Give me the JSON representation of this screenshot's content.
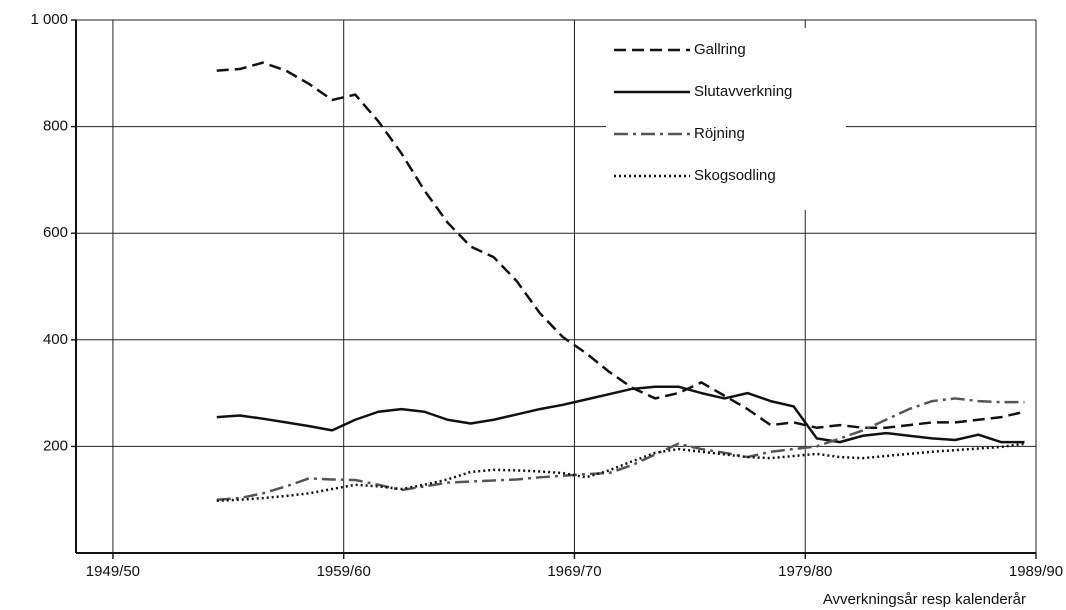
{
  "chart_data": {
    "type": "line",
    "xlabel": "Avverkningsår resp kalenderår",
    "x": [
      1954,
      1955,
      1956,
      1957,
      1958,
      1959,
      1960,
      1961,
      1962,
      1963,
      1964,
      1965,
      1966,
      1967,
      1968,
      1969,
      1970,
      1971,
      1972,
      1973,
      1974,
      1975,
      1976,
      1977,
      1978,
      1979,
      1980,
      1981,
      1982,
      1983,
      1984,
      1985,
      1986,
      1987,
      1988,
      1989
    ],
    "series": [
      {
        "name": "Gallring",
        "color": "#111111",
        "dash": "dashed",
        "values": [
          905,
          908,
          920,
          905,
          880,
          850,
          860,
          810,
          750,
          680,
          620,
          575,
          555,
          510,
          450,
          405,
          375,
          340,
          310,
          290,
          300,
          320,
          295,
          270,
          240,
          245,
          235,
          240,
          235,
          235,
          240,
          245,
          245,
          250,
          255,
          265
        ]
      },
      {
        "name": "Slutavverkning",
        "color": "#111111",
        "dash": "solid",
        "values": [
          255,
          258,
          252,
          245,
          238,
          230,
          250,
          265,
          270,
          265,
          250,
          243,
          250,
          260,
          270,
          278,
          288,
          298,
          308,
          312,
          312,
          300,
          290,
          300,
          285,
          275,
          215,
          208,
          220,
          225,
          220,
          215,
          212,
          222,
          208,
          208
        ]
      },
      {
        "name": "Röjning",
        "color": "#555555",
        "dash": "dashdot",
        "values": [
          100,
          103,
          112,
          125,
          140,
          138,
          137,
          128,
          118,
          125,
          132,
          134,
          136,
          138,
          142,
          145,
          148,
          150,
          165,
          185,
          205,
          195,
          188,
          180,
          190,
          195,
          200,
          215,
          230,
          250,
          270,
          285,
          290,
          285,
          283,
          283
        ]
      },
      {
        "name": "Skogsodling",
        "color": "#111111",
        "dash": "dotted",
        "values": [
          98,
          100,
          103,
          107,
          112,
          120,
          128,
          125,
          120,
          128,
          138,
          152,
          156,
          155,
          153,
          150,
          142,
          155,
          172,
          188,
          195,
          190,
          185,
          180,
          178,
          182,
          186,
          180,
          178,
          182,
          186,
          190,
          193,
          196,
          199,
          205
        ]
      }
    ],
    "xlim": [
      1947.9,
      1989.5
    ],
    "xticks": [
      {
        "value": 1949.5,
        "label": "1949/50"
      },
      {
        "value": 1959.5,
        "label": "1959/60"
      },
      {
        "value": 1969.5,
        "label": "1969/70"
      },
      {
        "value": 1979.5,
        "label": "1979/80"
      },
      {
        "value": 1989.5,
        "label": "1989/90"
      }
    ],
    "ylim": [
      0,
      1000
    ],
    "yticks": [
      200,
      400,
      600,
      800,
      {
        "value": 1000,
        "label": "1 000"
      }
    ],
    "grid": true,
    "legend": "upper right"
  }
}
